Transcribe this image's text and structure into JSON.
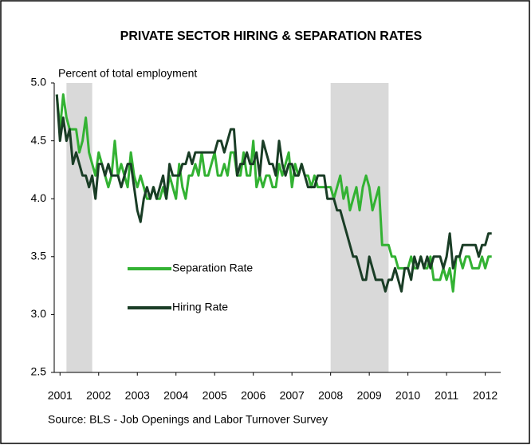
{
  "chart_data": {
    "type": "line",
    "title": "PRIVATE SECTOR HIRING & SEPARATION RATES",
    "y_label": "Percent of total employment",
    "source": "Source: BLS - Job Openings and Labor Turnover Survey",
    "x": [
      2000.917,
      2001,
      2001.083,
      2001.167,
      2001.25,
      2001.333,
      2001.417,
      2001.5,
      2001.583,
      2001.667,
      2001.75,
      2001.833,
      2001.917,
      2002,
      2002.083,
      2002.167,
      2002.25,
      2002.333,
      2002.417,
      2002.5,
      2002.583,
      2002.667,
      2002.75,
      2002.833,
      2002.917,
      2003,
      2003.083,
      2003.167,
      2003.25,
      2003.333,
      2003.417,
      2003.5,
      2003.583,
      2003.667,
      2003.75,
      2003.833,
      2003.917,
      2004,
      2004.083,
      2004.167,
      2004.25,
      2004.333,
      2004.417,
      2004.5,
      2004.583,
      2004.667,
      2004.75,
      2004.833,
      2004.917,
      2005,
      2005.083,
      2005.167,
      2005.25,
      2005.333,
      2005.417,
      2005.5,
      2005.583,
      2005.667,
      2005.75,
      2005.833,
      2005.917,
      2006,
      2006.083,
      2006.167,
      2006.25,
      2006.333,
      2006.417,
      2006.5,
      2006.583,
      2006.667,
      2006.75,
      2006.833,
      2006.917,
      2007,
      2007.083,
      2007.167,
      2007.25,
      2007.333,
      2007.417,
      2007.5,
      2007.583,
      2007.667,
      2007.75,
      2007.833,
      2007.917,
      2008,
      2008.083,
      2008.167,
      2008.25,
      2008.333,
      2008.417,
      2008.5,
      2008.583,
      2008.667,
      2008.75,
      2008.833,
      2008.917,
      2009,
      2009.083,
      2009.167,
      2009.25,
      2009.333,
      2009.417,
      2009.5,
      2009.583,
      2009.667,
      2009.75,
      2009.833,
      2009.917,
      2010,
      2010.083,
      2010.167,
      2010.25,
      2010.333,
      2010.417,
      2010.5,
      2010.583,
      2010.667,
      2010.75,
      2010.833,
      2010.917,
      2011,
      2011.083,
      2011.167,
      2011.25,
      2011.333,
      2011.417,
      2011.5,
      2011.583,
      2011.667,
      2011.75,
      2011.833,
      2011.917,
      2012,
      2012.083,
      2012.167
    ],
    "series": [
      {
        "name": "Separation Rate",
        "color": "#33b233",
        "values": [
          4.9,
          4.6,
          4.9,
          4.7,
          4.6,
          4.6,
          4.6,
          4.4,
          4.5,
          4.7,
          4.4,
          4.3,
          4.2,
          4.4,
          4.3,
          4.2,
          4.1,
          4.2,
          4.5,
          4.2,
          4.3,
          4.2,
          4.1,
          4.4,
          4.2,
          4.1,
          4.2,
          4.1,
          4.0,
          4.0,
          4.1,
          4.0,
          4.0,
          4.1,
          4.0,
          4.2,
          4.1,
          4.0,
          4.3,
          4.1,
          4.0,
          4.2,
          4.2,
          4.3,
          4.2,
          4.4,
          4.2,
          4.2,
          4.3,
          4.4,
          4.2,
          4.2,
          4.3,
          4.2,
          4.4,
          4.4,
          4.2,
          4.2,
          4.4,
          4.2,
          4.2,
          4.5,
          4.1,
          4.2,
          4.1,
          4.2,
          4.2,
          4.1,
          4.1,
          4.3,
          4.2,
          4.3,
          4.4,
          4.1,
          4.3,
          4.2,
          4.3,
          4.2,
          4.2,
          4.1,
          4.2,
          4.1,
          4.1,
          4.1,
          4.1,
          4.1,
          4.0,
          4.1,
          4.2,
          4.0,
          4.1,
          3.9,
          4.0,
          4.1,
          3.9,
          4.1,
          4.2,
          4.1,
          3.9,
          4.0,
          4.1,
          3.6,
          3.6,
          3.6,
          3.5,
          3.5,
          3.4,
          3.4,
          3.4,
          3.4,
          3.5,
          3.4,
          3.4,
          3.5,
          3.4,
          3.4,
          3.5,
          3.3,
          3.3,
          3.3,
          3.4,
          3.3,
          3.4,
          3.2,
          3.5,
          3.5,
          3.4,
          3.5,
          3.5,
          3.4,
          3.4,
          3.4,
          3.5,
          3.4,
          3.5,
          3.5
        ]
      },
      {
        "name": "Hiring Rate",
        "color": "#1a3d26",
        "values": [
          4.9,
          4.5,
          4.7,
          4.5,
          4.6,
          4.3,
          4.4,
          4.3,
          4.2,
          4.2,
          4.1,
          4.2,
          4.0,
          4.3,
          4.3,
          4.2,
          4.3,
          4.2,
          4.2,
          4.2,
          4.1,
          4.2,
          4.3,
          4.3,
          4.1,
          3.9,
          3.8,
          4.0,
          4.1,
          4.0,
          4.1,
          4.0,
          4.1,
          4.2,
          4.0,
          4.3,
          4.2,
          4.2,
          4.2,
          4.3,
          4.3,
          4.4,
          4.3,
          4.4,
          4.4,
          4.4,
          4.4,
          4.4,
          4.4,
          4.4,
          4.5,
          4.5,
          4.4,
          4.5,
          4.6,
          4.6,
          4.2,
          4.3,
          4.3,
          4.4,
          4.3,
          4.3,
          4.4,
          4.2,
          4.5,
          4.4,
          4.3,
          4.3,
          4.2,
          4.5,
          4.3,
          4.2,
          4.3,
          4.3,
          4.2,
          4.2,
          4.3,
          4.2,
          4.1,
          4.1,
          4.1,
          4.2,
          4.2,
          4.2,
          4.0,
          4.0,
          4.0,
          3.9,
          3.9,
          3.8,
          3.7,
          3.6,
          3.5,
          3.5,
          3.4,
          3.3,
          3.3,
          3.5,
          3.4,
          3.3,
          3.3,
          3.3,
          3.2,
          3.3,
          3.3,
          3.4,
          3.3,
          3.2,
          3.4,
          3.4,
          3.3,
          3.5,
          3.4,
          3.5,
          3.4,
          3.5,
          3.4,
          3.5,
          3.5,
          3.5,
          3.4,
          3.5,
          3.7,
          3.4,
          3.5,
          3.5,
          3.6,
          3.6,
          3.6,
          3.6,
          3.6,
          3.5,
          3.6,
          3.6,
          3.7,
          3.7
        ]
      }
    ],
    "shaded_periods": [
      [
        2001.167,
        2001.833
      ],
      [
        2008.0,
        2009.5
      ]
    ],
    "shade_color": "#d9d9d9",
    "xlim": [
      2000.85,
      2012.4
    ],
    "xticks": [
      2001,
      2002,
      2003,
      2004,
      2005,
      2006,
      2007,
      2008,
      2009,
      2010,
      2011,
      2012
    ],
    "ylim": [
      2.5,
      5.0
    ],
    "yticks": [
      2.5,
      {
        "value": 3.0,
        "label": "3.0"
      },
      3.5,
      {
        "value": 4.0,
        "label": "4.0"
      },
      4.5,
      {
        "value": 5.0,
        "label": "5.0"
      }
    ],
    "grid": false,
    "legend": "left"
  }
}
